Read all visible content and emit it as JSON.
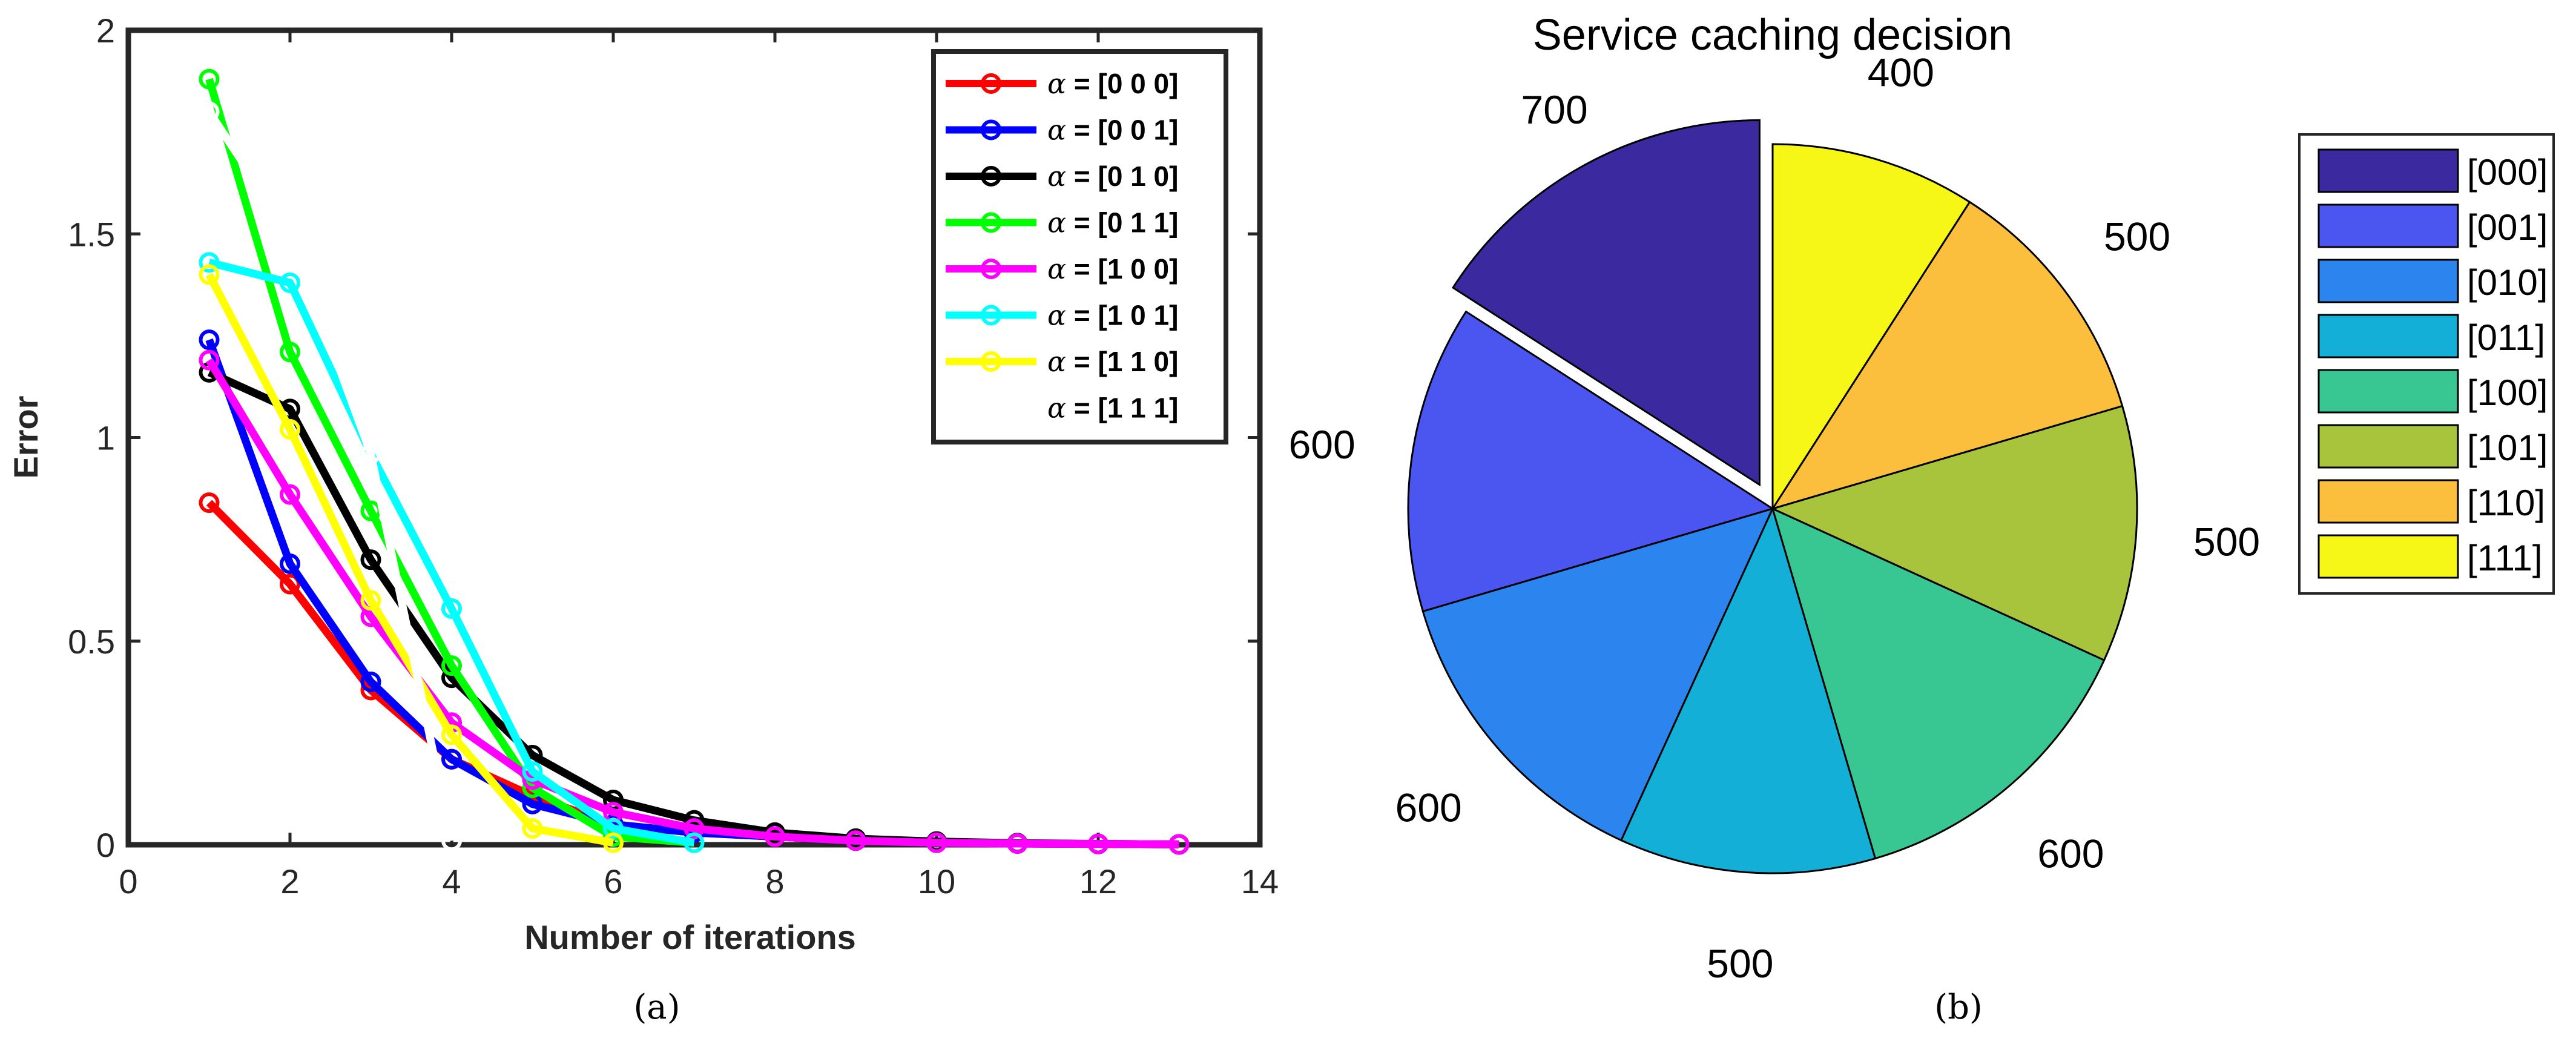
{
  "chart_data": [
    {
      "type": "line",
      "caption": "(a)",
      "xlabel": "Number of iterations",
      "ylabel": "Error",
      "xlim": [
        0,
        14
      ],
      "ylim": [
        0,
        2
      ],
      "xticks": [
        0,
        2,
        4,
        6,
        8,
        10,
        12,
        14
      ],
      "yticks": [
        0,
        0.5,
        1,
        1.5,
        2
      ],
      "xtick_labels": [
        "0",
        "2",
        "4",
        "6",
        "8",
        "10",
        "12",
        "14"
      ],
      "ytick_labels": [
        "0",
        "0.5",
        "1",
        "1.5",
        "2"
      ],
      "legend_prefix": "α",
      "series": [
        {
          "name": " = [0 0 0]",
          "color": "#ff0000",
          "x": [
            1,
            2,
            3,
            4,
            5,
            6,
            7,
            8,
            9,
            10,
            11,
            12,
            13
          ],
          "values": [
            0.84,
            0.64,
            0.38,
            0.21,
            0.12,
            0.05,
            0.03,
            0.02,
            0.01,
            0.005,
            0.003,
            0.002,
            0.001
          ]
        },
        {
          "name": " = [0 0 1]",
          "color": "#0000ff",
          "x": [
            1,
            2,
            3,
            4,
            5,
            6,
            7,
            8,
            9,
            10,
            11,
            12,
            13
          ],
          "values": [
            1.24,
            0.69,
            0.4,
            0.21,
            0.1,
            0.05,
            0.03,
            0.02,
            0.01,
            0.005,
            0.003,
            0.002,
            0.001
          ]
        },
        {
          "name": " = [0 1 0]",
          "color": "#000000",
          "x": [
            1,
            2,
            3,
            4,
            5,
            6,
            7,
            8,
            9,
            10,
            11,
            12,
            13
          ],
          "values": [
            1.16,
            1.07,
            0.7,
            0.41,
            0.22,
            0.11,
            0.06,
            0.03,
            0.015,
            0.008,
            0.004,
            0.002,
            0.001
          ]
        },
        {
          "name": " = [0 1 1]",
          "color": "#00ff00",
          "x": [
            1,
            2,
            3,
            4,
            5,
            6,
            7
          ],
          "values": [
            1.88,
            1.21,
            0.82,
            0.44,
            0.14,
            0.02,
            0.005
          ]
        },
        {
          "name": " = [1 0 0]",
          "color": "#ff00ff",
          "x": [
            1,
            2,
            3,
            4,
            5,
            6,
            7,
            8,
            9,
            10,
            11,
            12,
            13
          ],
          "values": [
            1.19,
            0.86,
            0.56,
            0.3,
            0.16,
            0.08,
            0.04,
            0.02,
            0.01,
            0.005,
            0.003,
            0.002,
            0.001
          ]
        },
        {
          "name": " = [1 0 1]",
          "color": "#00ffff",
          "x": [
            1,
            2,
            3,
            4,
            5,
            6,
            7
          ],
          "values": [
            1.43,
            1.38,
            0.96,
            0.58,
            0.18,
            0.04,
            0.005
          ]
        },
        {
          "name": " = [1 1 0]",
          "color": "#ffff00",
          "x": [
            1,
            2,
            3,
            4,
            5,
            6
          ],
          "values": [
            1.4,
            1.02,
            0.6,
            0.27,
            0.04,
            0.005
          ]
        },
        {
          "name": " = [1 1 1]",
          "color": "#ffffff",
          "x": [
            1,
            2,
            3,
            4
          ],
          "values": [
            1.8,
            1.5,
            0.96,
            0.01
          ]
        }
      ],
      "legend_location": "top-right"
    },
    {
      "type": "pie",
      "caption": "(b)",
      "title": "Service caching decision",
      "exploded": "[000]",
      "slices": [
        {
          "label": "[000]",
          "value": 700,
          "value_label": "700",
          "color": "#3b2a9f"
        },
        {
          "label": "[001]",
          "value": 600,
          "value_label": "600",
          "color": "#4a56ef"
        },
        {
          "label": "[010]",
          "value": 600,
          "value_label": "600",
          "color": "#2c85ee"
        },
        {
          "label": "[011]",
          "value": 500,
          "value_label": "500",
          "color": "#13afd6"
        },
        {
          "label": "[100]",
          "value": 600,
          "value_label": "600",
          "color": "#38c693"
        },
        {
          "label": "[101]",
          "value": 500,
          "value_label": "500",
          "color": "#a8c43c"
        },
        {
          "label": "[110]",
          "value": 500,
          "value_label": "500",
          "color": "#fbbf3d"
        },
        {
          "label": "[111]",
          "value": 400,
          "value_label": "400",
          "color": "#f6f717"
        }
      ],
      "legend_location": "right"
    }
  ]
}
